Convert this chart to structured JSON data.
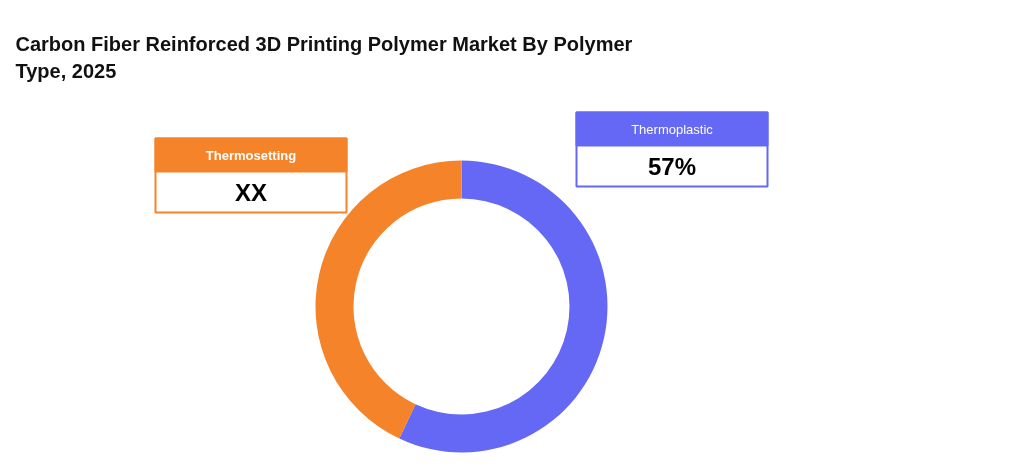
{
  "chart_data": {
    "type": "donut",
    "title": "Carbon Fiber Reinforced 3D Printing Polymer Market By Polymer Type, 2025",
    "categories": [
      "Thermoplastic",
      "Thermosetting"
    ],
    "values": [
      57,
      43
    ],
    "colors": [
      "#6468f4",
      "#f5832a"
    ],
    "value_labels": [
      "57%",
      "XX"
    ]
  }
}
